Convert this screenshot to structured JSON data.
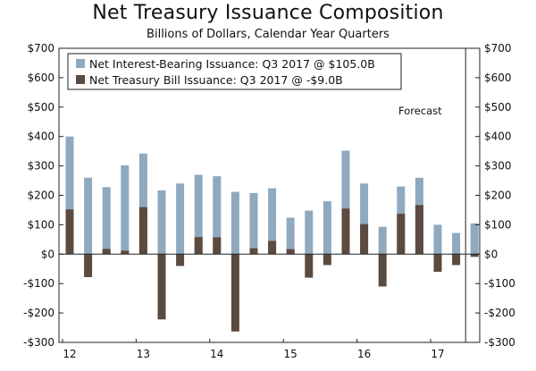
{
  "chart_data": {
    "type": "bar",
    "title": "Net Treasury Issuance Composition",
    "subtitle": "Billions of Dollars, Calendar Year Quarters",
    "ylim": [
      -300,
      700
    ],
    "y_ticks": [
      -300,
      -200,
      -100,
      0,
      100,
      200,
      300,
      400,
      500,
      600,
      700
    ],
    "y_tick_labels": [
      "-$300",
      "-$200",
      "-$100",
      "$0",
      "$100",
      "$200",
      "$300",
      "$400",
      "$500",
      "$600",
      "$700"
    ],
    "x_tick_labels": [
      "12",
      "13",
      "14",
      "15",
      "16",
      "17"
    ],
    "categories": [
      "2012Q1",
      "2012Q2",
      "2012Q3",
      "2012Q4",
      "2013Q1",
      "2013Q2",
      "2013Q3",
      "2013Q4",
      "2014Q1",
      "2014Q2",
      "2014Q3",
      "2014Q4",
      "2015Q1",
      "2015Q2",
      "2015Q3",
      "2015Q4",
      "2016Q1",
      "2016Q2",
      "2016Q3",
      "2016Q4",
      "2017Q1",
      "2017Q2",
      "2017Q3"
    ],
    "series": [
      {
        "name": "Net Interest-Bearing Issuance: Q3 2017 @ $105.0B",
        "color": "#8fa9bf",
        "values": [
          400,
          260,
          228,
          302,
          342,
          217,
          240,
          270,
          265,
          212,
          208,
          224,
          124,
          148,
          180,
          352,
          240,
          93,
          230,
          260,
          100,
          72,
          105
        ]
      },
      {
        "name": "Net Treasury Bill Issuance: Q3 2017 @ -$9.0B",
        "color": "#5b4a40",
        "values": [
          152,
          -78,
          18,
          12,
          160,
          -222,
          -40,
          58,
          57,
          -263,
          20,
          45,
          17,
          -80,
          -37,
          155,
          102,
          -110,
          137,
          167,
          -60,
          -37,
          -9
        ]
      }
    ],
    "forecast_label": "Forecast",
    "forecast_start_index": 22
  }
}
